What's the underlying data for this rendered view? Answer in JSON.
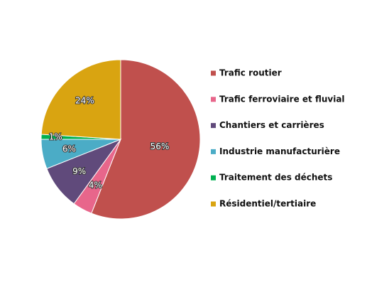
{
  "chart_data": {
    "type": "pie",
    "categories": [
      "Trafic routier",
      "Trafic ferroviaire et fluvial",
      "Chantiers et carrières",
      "Industrie manufacturière",
      "Traitement des déchets",
      "Résidentiel/tertiaire"
    ],
    "values": [
      56,
      4,
      9,
      6,
      1,
      24
    ],
    "value_labels": [
      "56%",
      "4%",
      "9%",
      "6%",
      "1%",
      "24%"
    ],
    "colors": [
      "#c0504d",
      "#e8668b",
      "#604a7b",
      "#4bacc6",
      "#00b050",
      "#d9a411"
    ],
    "legend": "right"
  }
}
